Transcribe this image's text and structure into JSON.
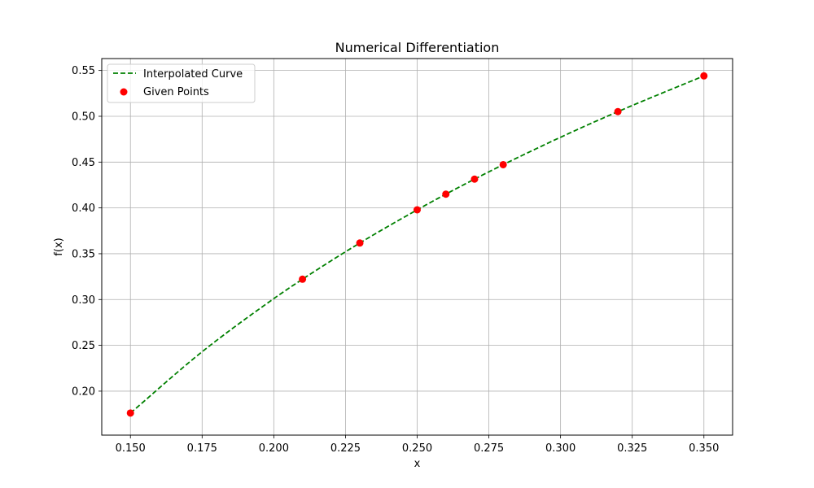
{
  "chart_data": {
    "type": "line",
    "title": "Numerical Differentiation",
    "xlabel": "x",
    "ylabel": "f(x)",
    "xlim": [
      0.14,
      0.36
    ],
    "ylim": [
      0.152,
      0.563
    ],
    "grid": true,
    "legend_position": "top-left",
    "x_ticks": [
      0.15,
      0.175,
      0.2,
      0.225,
      0.25,
      0.275,
      0.3,
      0.325,
      0.35
    ],
    "x_tick_labels": [
      "0.150",
      "0.175",
      "0.200",
      "0.225",
      "0.250",
      "0.275",
      "0.300",
      "0.325",
      "0.350"
    ],
    "y_ticks": [
      0.2,
      0.25,
      0.3,
      0.35,
      0.4,
      0.45,
      0.5,
      0.55
    ],
    "y_tick_labels": [
      "0.20",
      "0.25",
      "0.30",
      "0.35",
      "0.40",
      "0.45",
      "0.50",
      "0.55"
    ],
    "series": [
      {
        "name": "Interpolated Curve",
        "kind": "line",
        "style": "dashed",
        "color": "#008000",
        "x": [
          0.15,
          0.175,
          0.2,
          0.21,
          0.23,
          0.25,
          0.26,
          0.27,
          0.28,
          0.3,
          0.32,
          0.35
        ],
        "y": [
          0.1761,
          0.243,
          0.301,
          0.3222,
          0.3617,
          0.3979,
          0.415,
          0.4314,
          0.4472,
          0.4771,
          0.5051,
          0.5441
        ]
      },
      {
        "name": "Given Points",
        "kind": "scatter",
        "color": "#ff0000",
        "x": [
          0.15,
          0.21,
          0.23,
          0.25,
          0.26,
          0.27,
          0.28,
          0.32,
          0.35
        ],
        "y": [
          0.1761,
          0.3222,
          0.3617,
          0.3979,
          0.415,
          0.4314,
          0.4472,
          0.5051,
          0.5441
        ]
      }
    ]
  }
}
